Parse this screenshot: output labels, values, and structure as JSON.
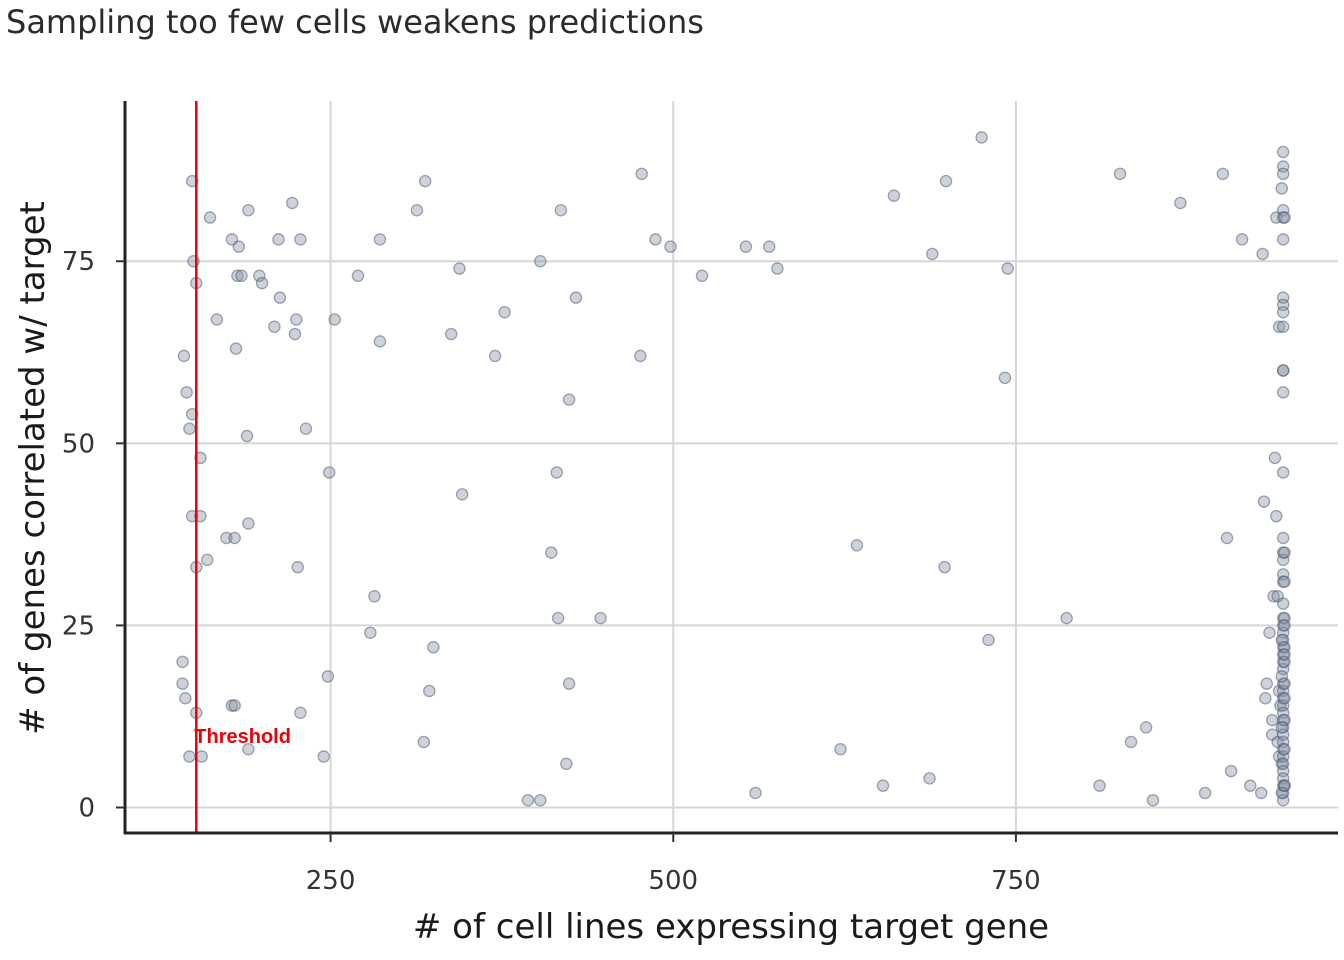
{
  "chart_data": {
    "type": "scatter",
    "title": "Sampling too few cells weakens predictions",
    "xlabel": "# of cell lines expressing target gene",
    "ylabel": "# of genes correlated w/ target",
    "xlim": [
      100,
      985
    ],
    "ylim": [
      -3.5,
      97
    ],
    "x_ticks": [
      250,
      500,
      750
    ],
    "y_ticks": [
      0,
      25,
      50,
      75
    ],
    "grid": true,
    "threshold": {
      "x": 152,
      "label": "Threshold",
      "color": "#e8000b"
    },
    "point_color": "#8a94a8",
    "points": [
      [
        143,
        62
      ],
      [
        145,
        57
      ],
      [
        147,
        52
      ],
      [
        149,
        54
      ],
      [
        149,
        86
      ],
      [
        150,
        75
      ],
      [
        152,
        72
      ],
      [
        162,
        81
      ],
      [
        167,
        67
      ],
      [
        149,
        40
      ],
      [
        155,
        40
      ],
      [
        155,
        48
      ],
      [
        152,
        33
      ],
      [
        160,
        34
      ],
      [
        174,
        37
      ],
      [
        180,
        37
      ],
      [
        178,
        78
      ],
      [
        183,
        77
      ],
      [
        182,
        73
      ],
      [
        185,
        73
      ],
      [
        181,
        63
      ],
      [
        189,
        51
      ],
      [
        190,
        39
      ],
      [
        190,
        82
      ],
      [
        198,
        73
      ],
      [
        200,
        72
      ],
      [
        209,
        66
      ],
      [
        212,
        78
      ],
      [
        213,
        70
      ],
      [
        222,
        83
      ],
      [
        224,
        65
      ],
      [
        225,
        67
      ],
      [
        228,
        78
      ],
      [
        232,
        52
      ],
      [
        226,
        33
      ],
      [
        142,
        20
      ],
      [
        142,
        17
      ],
      [
        144,
        15
      ],
      [
        152,
        13
      ],
      [
        147,
        7
      ],
      [
        156,
        7
      ],
      [
        178,
        14
      ],
      [
        180,
        14
      ],
      [
        190,
        8
      ],
      [
        228,
        13
      ],
      [
        245,
        7
      ],
      [
        248,
        18
      ],
      [
        249,
        46
      ],
      [
        253,
        67
      ],
      [
        270,
        73
      ],
      [
        279,
        24
      ],
      [
        282,
        29
      ],
      [
        286,
        78
      ],
      [
        286,
        64
      ],
      [
        313,
        82
      ],
      [
        319,
        86
      ],
      [
        318,
        9
      ],
      [
        322,
        16
      ],
      [
        325,
        22
      ],
      [
        338,
        65
      ],
      [
        344,
        74
      ],
      [
        346,
        43
      ],
      [
        370,
        62
      ],
      [
        377,
        68
      ],
      [
        394,
        1
      ],
      [
        403,
        1
      ],
      [
        403,
        75
      ],
      [
        411,
        35
      ],
      [
        415,
        46
      ],
      [
        416,
        26
      ],
      [
        418,
        82
      ],
      [
        422,
        6
      ],
      [
        424,
        17
      ],
      [
        424,
        56
      ],
      [
        429,
        70
      ],
      [
        447,
        26
      ],
      [
        476,
        62
      ],
      [
        477,
        87
      ],
      [
        487,
        78
      ],
      [
        498,
        77
      ],
      [
        521,
        73
      ],
      [
        553,
        77
      ],
      [
        560,
        2
      ],
      [
        570,
        77
      ],
      [
        576,
        74
      ],
      [
        622,
        8
      ],
      [
        634,
        36
      ],
      [
        653,
        3
      ],
      [
        661,
        84
      ],
      [
        687,
        4
      ],
      [
        689,
        76
      ],
      [
        698,
        33
      ],
      [
        699,
        86
      ],
      [
        725,
        92
      ],
      [
        730,
        23
      ],
      [
        742,
        59
      ],
      [
        744,
        74
      ],
      [
        787,
        26
      ],
      [
        811,
        3
      ],
      [
        826,
        87
      ],
      [
        834,
        9
      ],
      [
        845,
        11
      ],
      [
        850,
        1
      ],
      [
        870,
        83
      ],
      [
        888,
        2
      ],
      [
        901,
        87
      ],
      [
        904,
        37
      ],
      [
        907,
        5
      ],
      [
        915,
        78
      ],
      [
        921,
        3
      ],
      [
        929,
        2
      ],
      [
        930,
        76
      ],
      [
        931,
        42
      ],
      [
        932,
        15
      ],
      [
        933,
        17
      ],
      [
        935,
        24
      ],
      [
        937,
        12
      ],
      [
        937,
        10
      ],
      [
        938,
        29
      ],
      [
        939,
        48
      ],
      [
        940,
        40
      ],
      [
        940,
        81
      ],
      [
        941,
        29
      ],
      [
        941,
        9
      ],
      [
        942,
        66
      ],
      [
        942,
        7
      ],
      [
        942,
        16
      ],
      [
        943,
        14
      ],
      [
        944,
        6
      ],
      [
        944,
        85
      ],
      [
        945,
        60
      ],
      [
        945,
        90
      ],
      [
        945,
        88
      ],
      [
        945,
        87
      ],
      [
        945,
        82
      ],
      [
        945,
        81
      ],
      [
        945,
        78
      ],
      [
        945,
        70
      ],
      [
        945,
        69
      ],
      [
        945,
        68
      ],
      [
        945,
        66
      ],
      [
        945,
        60
      ],
      [
        945,
        57
      ],
      [
        945,
        46
      ],
      [
        945,
        37
      ],
      [
        945,
        35
      ],
      [
        945,
        34
      ],
      [
        945,
        32
      ],
      [
        945,
        31
      ],
      [
        945,
        28
      ],
      [
        945,
        26
      ],
      [
        945,
        25
      ],
      [
        945,
        24
      ],
      [
        945,
        23
      ],
      [
        945,
        22
      ],
      [
        945,
        21
      ],
      [
        945,
        20
      ],
      [
        945,
        19
      ],
      [
        945,
        17
      ],
      [
        945,
        16
      ],
      [
        945,
        15
      ],
      [
        945,
        14
      ],
      [
        945,
        13
      ],
      [
        945,
        12
      ],
      [
        945,
        11
      ],
      [
        945,
        10
      ],
      [
        945,
        9
      ],
      [
        945,
        8
      ],
      [
        945,
        7
      ],
      [
        945,
        6
      ],
      [
        945,
        5
      ],
      [
        945,
        4
      ],
      [
        945,
        3
      ],
      [
        945,
        2
      ],
      [
        945,
        1
      ],
      [
        946,
        35
      ],
      [
        946,
        31
      ],
      [
        946,
        26
      ],
      [
        946,
        22
      ],
      [
        946,
        20
      ],
      [
        946,
        17
      ],
      [
        946,
        15
      ],
      [
        946,
        12
      ],
      [
        946,
        8
      ],
      [
        946,
        3
      ],
      [
        944,
        23
      ],
      [
        944,
        18
      ],
      [
        944,
        11
      ],
      [
        944,
        2
      ],
      [
        946,
        81
      ],
      [
        946,
        25
      ],
      [
        946,
        21
      ],
      [
        946,
        3
      ]
    ]
  }
}
